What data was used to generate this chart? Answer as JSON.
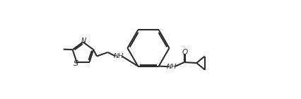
{
  "bg_color": "#ffffff",
  "line_color": "#2d2d2d",
  "line_width": 1.5,
  "figsize": [
    4.26,
    1.4
  ],
  "dpi": 100,
  "xlim": [
    0.0,
    4.26
  ],
  "ylim": [
    0.0,
    1.4
  ]
}
